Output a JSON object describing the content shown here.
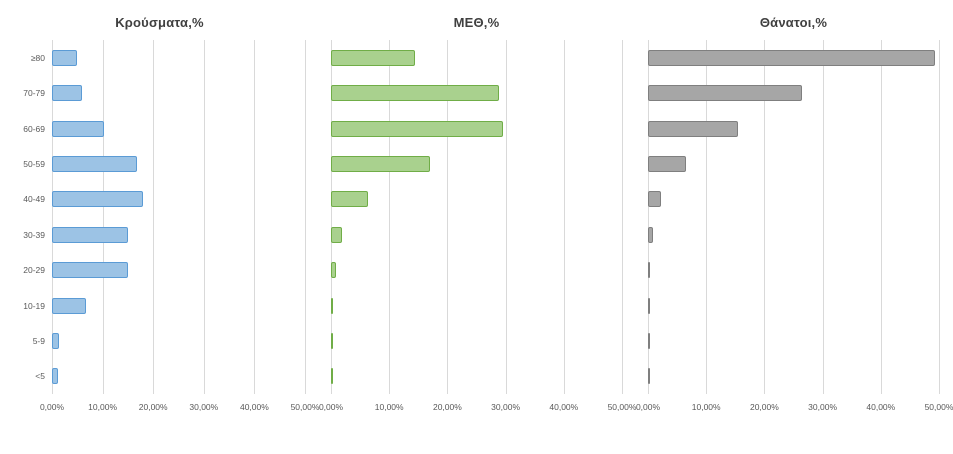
{
  "style": {
    "background": "#ffffff",
    "gridline_color": "#d9d9d9",
    "title_color": "#404040",
    "axis_label_color": "#595959"
  },
  "chart_data": [
    {
      "type": "bar",
      "orientation": "horizontal",
      "title": "Κρούσματα,%",
      "categories": [
        "≥80",
        "70-79",
        "60-69",
        "50-59",
        "40-49",
        "30-39",
        "20-29",
        "10-19",
        "5-9",
        "<5"
      ],
      "values": [
        5.0,
        5.9,
        10.3,
        16.8,
        18.0,
        15.0,
        15.0,
        6.8,
        1.3,
        1.2
      ],
      "bar_color": "#9cc3e5",
      "bar_border_color": "#5b9bd5",
      "xlim": [
        0,
        50
      ],
      "x_ticks": [
        "0,00%",
        "10,00%",
        "20,00%",
        "30,00%",
        "40,00%",
        "50,00%"
      ],
      "grid": true,
      "legend": false
    },
    {
      "type": "bar",
      "orientation": "horizontal",
      "title": "ΜΕΘ,%",
      "categories": [
        "≥80",
        "70-79",
        "60-69",
        "50-59",
        "40-49",
        "30-39",
        "20-29",
        "10-19",
        "5-9",
        "<5"
      ],
      "values": [
        14.5,
        28.8,
        29.5,
        17.0,
        6.3,
        1.9,
        0.8,
        0.3,
        0.1,
        0.3
      ],
      "bar_color": "#a9d18e",
      "bar_border_color": "#70ad47",
      "xlim": [
        0,
        50
      ],
      "x_ticks": [
        "0,00%",
        "10,00%",
        "20,00%",
        "30,00%",
        "40,00%",
        "50,00%"
      ],
      "grid": true,
      "legend": false
    },
    {
      "type": "bar",
      "orientation": "horizontal",
      "title": "Θάνατοι,%",
      "categories": [
        "≥80",
        "70-79",
        "60-69",
        "50-59",
        "40-49",
        "30-39",
        "20-29",
        "10-19",
        "5-9",
        "<5"
      ],
      "values": [
        49.3,
        26.5,
        15.5,
        6.5,
        2.2,
        0.9,
        0.4,
        0.1,
        0.05,
        0.05
      ],
      "bar_color": "#a6a6a6",
      "bar_border_color": "#7f7f7f",
      "xlim": [
        0,
        50
      ],
      "x_ticks": [
        "0,00%",
        "10,00%",
        "20,00%",
        "30,00%",
        "40,00%",
        "50,00%"
      ],
      "grid": true,
      "legend": false
    }
  ]
}
